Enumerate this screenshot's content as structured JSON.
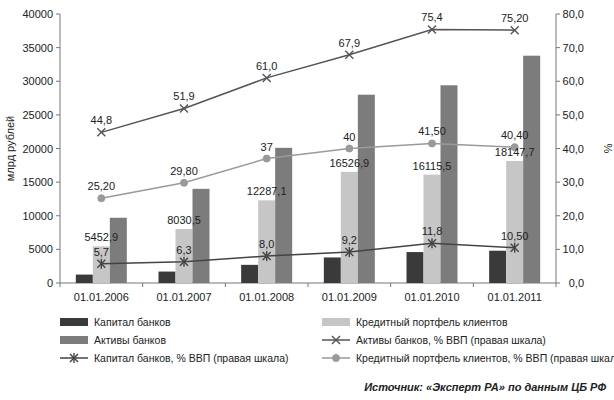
{
  "chart_data": {
    "type": "bar",
    "categories": [
      "01.01.2006",
      "01.01.2007",
      "01.01.2008",
      "01.01.2009",
      "01.01.2010",
      "01.01.2011"
    ],
    "y_label": "млрд рублей",
    "y2_label": "%",
    "source": "Источник: «Эксперт РА» по данным ЦБ РФ",
    "ylim": [
      0,
      40000
    ],
    "yticks": [
      0,
      5000,
      10000,
      15000,
      20000,
      25000,
      30000,
      35000,
      40000
    ],
    "y2lim": [
      0,
      80
    ],
    "y2ticks": [
      {
        "value": 0,
        "label": "0,0"
      },
      {
        "value": 10,
        "label": "10,0"
      },
      {
        "value": 20,
        "label": "20,0"
      },
      {
        "value": 30,
        "label": "30,0"
      },
      {
        "value": 40,
        "label": "40,0"
      },
      {
        "value": 50,
        "label": "50,0"
      },
      {
        "value": 60,
        "label": "60,0"
      },
      {
        "value": 70,
        "label": "70,0"
      },
      {
        "value": 80,
        "label": "80,0"
      }
    ],
    "grid": false,
    "legend": "bottom",
    "series": [
      {
        "name": "Капитал банков",
        "type": "bar",
        "color": "#3a3a3a",
        "values": [
          1250,
          1700,
          2700,
          3800,
          4600,
          4800
        ]
      },
      {
        "name": "Кредитный портфель клиентов",
        "type": "bar",
        "color": "#c6c6c6",
        "values": [
          5452.9,
          8030.5,
          12287.1,
          16526.9,
          16115.5,
          18147.7
        ],
        "data_labels": true,
        "value_labels": [
          "5452,9",
          "8030,5",
          "12287,1",
          "16526,9",
          "16115,5",
          "18147,7"
        ]
      },
      {
        "name": "Активы банков",
        "type": "bar",
        "color": "#7c7c7c",
        "values": [
          9700,
          14000,
          20100,
          28000,
          29400,
          33800
        ]
      },
      {
        "name": "Активы банков, % ВВП (правая шкала)",
        "type": "line",
        "axis": "y2",
        "color": "#555555",
        "marker": "x",
        "values": [
          44.8,
          51.9,
          61.0,
          67.9,
          75.4,
          75.2
        ],
        "data_labels": true,
        "value_labels": [
          "44,8",
          "51,9",
          "61,0",
          "67,9",
          "75,4",
          "75,20"
        ]
      },
      {
        "name": "Капитал банков, % ВВП (правая шкала)",
        "type": "line",
        "axis": "y2",
        "color": "#444444",
        "marker": "asterisk",
        "values": [
          5.7,
          6.3,
          8.0,
          9.2,
          11.8,
          10.5
        ],
        "data_labels": true,
        "value_labels": [
          "5,7",
          "6,3",
          "8,0",
          "9,2",
          "11,8",
          "10,50"
        ]
      },
      {
        "name": "Кредитный портфель клиентов, % ВВП (правая шкала)",
        "type": "line",
        "axis": "y2",
        "color": "#9a9a9a",
        "marker": "circle",
        "values": [
          25.2,
          29.8,
          37,
          40,
          41.5,
          40.4
        ],
        "data_labels": true,
        "value_labels": [
          "25,20",
          "29,80",
          "37",
          "40",
          "41,50",
          "40,40"
        ]
      }
    ]
  }
}
